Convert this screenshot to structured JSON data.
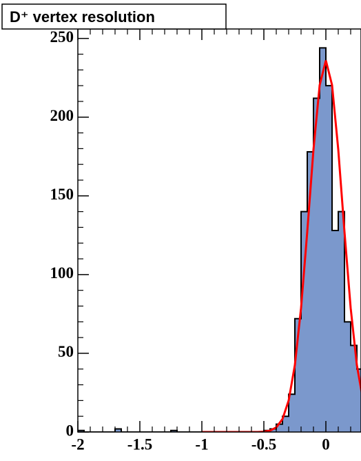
{
  "chart_data": {
    "type": "histogram",
    "title": "D⁺ vertex resolution",
    "bins": [
      -2,
      -1.95,
      -1.9,
      -1.85,
      -1.8,
      -1.75,
      -1.7,
      -1.65,
      -1.6,
      -1.55,
      -1.5,
      -1.45,
      -1.4,
      -1.35,
      -1.3,
      -1.25,
      -1.2,
      -1.15,
      -1.1,
      -1.05,
      -1,
      -0.95,
      -0.9,
      -0.85,
      -0.8,
      -0.75,
      -0.7,
      -0.65,
      -0.6,
      -0.55,
      -0.5,
      -0.45,
      -0.4,
      -0.35,
      -0.3,
      -0.25,
      -0.2,
      -0.15,
      -0.1,
      -0.05,
      0,
      0.05,
      0.1,
      0.15,
      0.2,
      0.25,
      0.3
    ],
    "values": [
      1,
      0,
      0,
      0,
      0,
      0,
      2,
      0,
      0,
      0,
      0,
      0,
      0,
      0,
      0,
      1,
      0,
      0,
      0,
      0,
      0,
      0,
      0,
      0,
      0,
      0,
      0,
      0,
      0,
      0,
      1,
      2,
      5,
      10,
      24,
      72,
      140,
      178,
      212,
      244,
      220,
      128,
      140,
      70,
      55,
      40
    ],
    "color": "#7b98cc",
    "fit": {
      "color": "#ff0000",
      "x": [
        -1,
        -0.6,
        -0.55,
        -0.5,
        -0.45,
        -0.4,
        -0.35,
        -0.3,
        -0.25,
        -0.2,
        -0.15,
        -0.1,
        -0.05,
        0,
        0.05,
        0.1,
        0.15,
        0.2,
        0.25,
        0.3
      ],
      "values": [
        0,
        0,
        0,
        0.2,
        0.9,
        2.9,
        8.2,
        20,
        42.5,
        78.8,
        127.3,
        179.4,
        220.3,
        236,
        220.3,
        179.4,
        127.3,
        78.8,
        42.5,
        20
      ]
    },
    "xlim": [
      -2,
      0.28
    ],
    "ylim": [
      0,
      256
    ],
    "xticks": [
      -2,
      -1.5,
      -1,
      -0.5,
      0
    ],
    "yticks": [
      0,
      50,
      100,
      150,
      200,
      250
    ]
  }
}
